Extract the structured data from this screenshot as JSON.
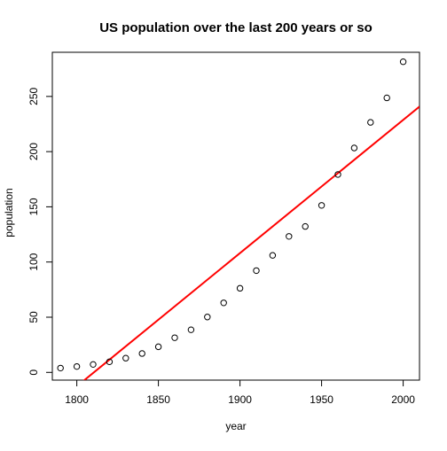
{
  "chart_data": {
    "type": "scatter",
    "title": "US population over the last 200 years or so",
    "xlabel": "year",
    "ylabel": "population",
    "xlim": [
      1785,
      2010
    ],
    "ylim": [
      -7,
      290
    ],
    "x_ticks": [
      1800,
      1850,
      1900,
      1950,
      2000
    ],
    "y_ticks": [
      0,
      50,
      100,
      150,
      200,
      250
    ],
    "grid": false,
    "legend": "none",
    "series": [
      {
        "marker": "open-circle",
        "color": "#000000",
        "x": [
          1790,
          1800,
          1810,
          1820,
          1830,
          1840,
          1850,
          1860,
          1870,
          1880,
          1890,
          1900,
          1910,
          1920,
          1930,
          1940,
          1950,
          1960,
          1970,
          1980,
          1990,
          2000
        ],
        "y": [
          3.9,
          5.3,
          7.2,
          9.6,
          12.9,
          17.1,
          23.2,
          31.4,
          38.6,
          50.2,
          63.0,
          76.2,
          92.2,
          106.0,
          123.2,
          132.2,
          151.3,
          179.3,
          203.3,
          226.5,
          248.7,
          281.4
        ]
      }
    ],
    "fit_line": {
      "color": "#ff0000",
      "x": [
        1785,
        2010
      ],
      "y": [
        -30.7,
        240.8
      ]
    }
  }
}
